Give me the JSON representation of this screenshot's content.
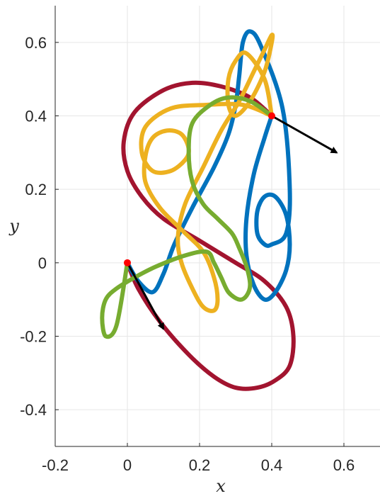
{
  "chart_data": {
    "type": "line",
    "xlabel": "x",
    "ylabel": "y",
    "xlim": [
      -0.2,
      0.7
    ],
    "ylim": [
      -0.5,
      0.7
    ],
    "xticks": [
      -0.2,
      0,
      0.2,
      0.4,
      0.6
    ],
    "yticks": [
      -0.4,
      -0.2,
      0,
      0.2,
      0.4,
      0.6
    ],
    "xtick_labels": [
      "-0.2",
      "0",
      "0.2",
      "0.4",
      "0.6"
    ],
    "ytick_labels": [
      "-0.4",
      "-0.2",
      "0",
      "0.2",
      "0.4",
      "0.6"
    ],
    "grid": true,
    "series": [
      {
        "color": "#a2142f",
        "x": [
          0.4,
          0.34,
          0.26,
          0.18,
          0.1,
          0.02,
          -0.01,
          0.0,
          0.04,
          0.1,
          0.2,
          0.3,
          0.38,
          0.44,
          0.46,
          0.45,
          0.41,
          0.36,
          0.3,
          0.24,
          0.17,
          0.09,
          0.03,
          0.0
        ],
        "y": [
          0.4,
          0.45,
          0.48,
          0.49,
          0.47,
          0.41,
          0.33,
          0.25,
          0.18,
          0.12,
          0.06,
          0.0,
          -0.05,
          -0.12,
          -0.2,
          -0.28,
          -0.32,
          -0.34,
          -0.34,
          -0.31,
          -0.25,
          -0.16,
          -0.07,
          0.0
        ]
      },
      {
        "color": "#0072bd",
        "x": [
          0.4,
          0.38,
          0.35,
          0.33,
          0.33,
          0.35,
          0.38,
          0.41,
          0.44,
          0.45,
          0.44,
          0.41,
          0.38,
          0.36,
          0.36,
          0.38,
          0.4,
          0.44,
          0.45,
          0.43,
          0.37,
          0.34,
          0.32,
          0.31,
          0.3,
          0.28,
          0.24,
          0.18,
          0.13,
          0.1,
          0.07,
          0.03,
          0.0
        ],
        "y": [
          0.4,
          0.34,
          0.24,
          0.12,
          0.02,
          -0.06,
          -0.1,
          -0.08,
          -0.02,
          0.05,
          0.13,
          0.18,
          0.18,
          0.14,
          0.08,
          0.05,
          0.05,
          0.08,
          0.2,
          0.42,
          0.59,
          0.63,
          0.6,
          0.51,
          0.43,
          0.35,
          0.26,
          0.15,
          0.05,
          -0.03,
          -0.08,
          -0.05,
          0.0
        ]
      },
      {
        "color": "#edb120",
        "x": [
          0.4,
          0.32,
          0.22,
          0.12,
          0.05,
          0.04,
          0.07,
          0.12,
          0.16,
          0.17,
          0.15,
          0.11,
          0.07,
          0.05,
          0.05,
          0.09,
          0.15,
          0.21,
          0.24,
          0.25,
          0.24,
          0.21,
          0.18,
          0.15,
          0.14,
          0.16,
          0.21,
          0.26,
          0.31,
          0.35,
          0.38,
          0.4,
          0.4,
          0.38,
          0.34,
          0.3,
          0.28,
          0.28,
          0.3,
          0.33,
          0.38,
          0.4
        ],
        "y": [
          0.4,
          0.43,
          0.43,
          0.42,
          0.37,
          0.3,
          0.25,
          0.25,
          0.28,
          0.31,
          0.35,
          0.36,
          0.34,
          0.29,
          0.22,
          0.15,
          0.09,
          0.03,
          -0.04,
          -0.1,
          -0.13,
          -0.12,
          -0.07,
          0.0,
          0.07,
          0.16,
          0.26,
          0.36,
          0.44,
          0.52,
          0.58,
          0.62,
          0.6,
          0.52,
          0.44,
          0.4,
          0.43,
          0.5,
          0.55,
          0.57,
          0.5,
          0.4
        ]
      },
      {
        "color": "#77ac30",
        "x": [
          0.4,
          0.34,
          0.28,
          0.23,
          0.18,
          0.17,
          0.18,
          0.21,
          0.25,
          0.29,
          0.31,
          0.33,
          0.34,
          0.33,
          0.31,
          0.28,
          0.26,
          0.24,
          0.22,
          0.16,
          0.08,
          0.02,
          -0.03,
          -0.06,
          -0.07,
          -0.06,
          -0.03,
          0.0
        ],
        "y": [
          0.4,
          0.44,
          0.45,
          0.43,
          0.38,
          0.3,
          0.22,
          0.16,
          0.12,
          0.08,
          0.04,
          -0.01,
          -0.06,
          -0.09,
          -0.1,
          -0.08,
          -0.04,
          0.0,
          0.03,
          0.02,
          -0.01,
          -0.04,
          -0.07,
          -0.1,
          -0.15,
          -0.2,
          -0.17,
          0.0
        ]
      }
    ],
    "markers": [
      {
        "x": 0,
        "y": 0,
        "color": "#ff0000"
      },
      {
        "x": 0.4,
        "y": 0.4,
        "color": "#ff0000"
      }
    ],
    "arrows": [
      {
        "x": 0,
        "y": 0,
        "dx": 0.1,
        "dy": -0.18,
        "color": "#000000"
      },
      {
        "x": 0.4,
        "y": 0.4,
        "dx": 0.18,
        "dy": -0.1,
        "color": "#000000"
      }
    ]
  }
}
